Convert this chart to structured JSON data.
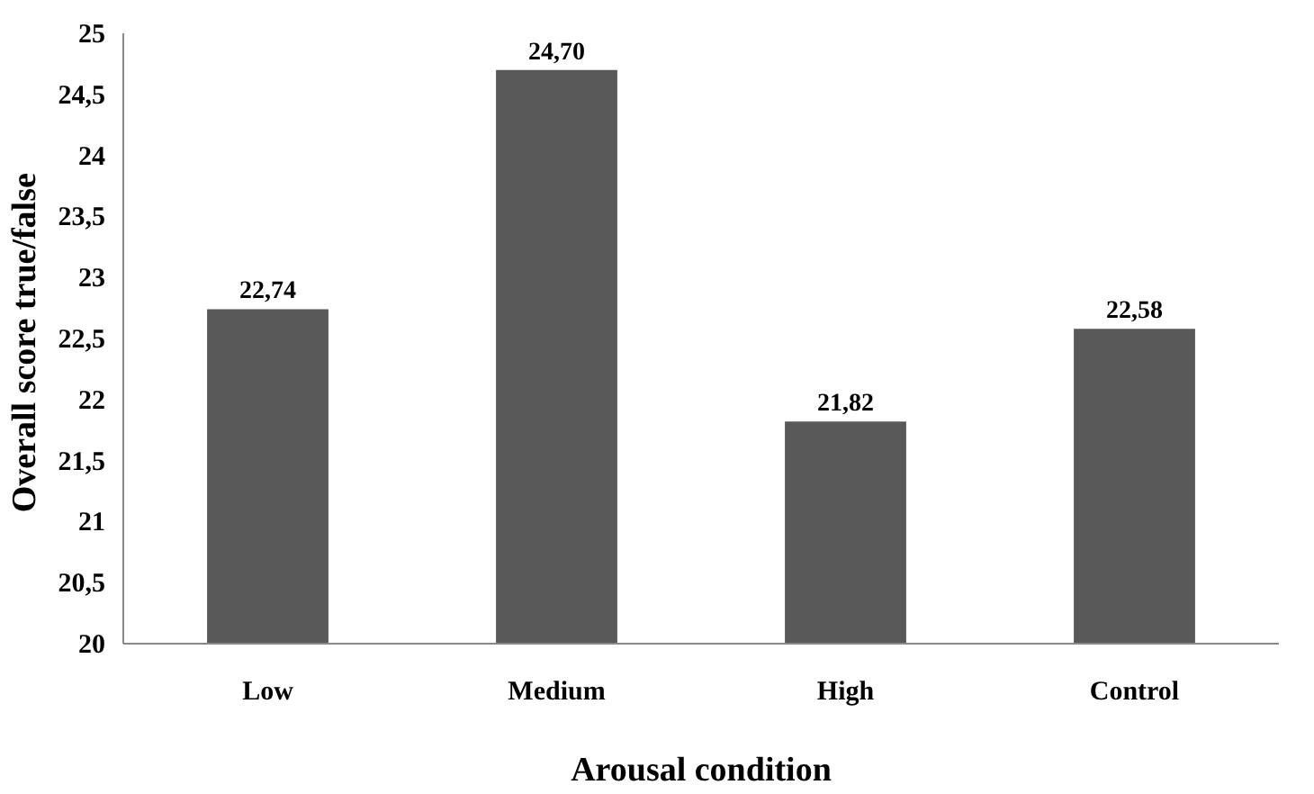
{
  "chart_data": {
    "type": "bar",
    "xlabel": "Arousal condition",
    "ylabel": "Overall score  true/false",
    "categories": [
      "Low",
      "Medium",
      "High",
      "Control"
    ],
    "values": [
      22.74,
      24.7,
      21.82,
      22.58
    ],
    "value_labels": [
      "22,74",
      "24,70",
      "21,82",
      "22,58"
    ],
    "color": "#595959",
    "ylim": [
      20,
      25
    ],
    "yticks": [
      20,
      {
        "value": 20.5,
        "label": "20,5"
      },
      21,
      {
        "value": 21.5,
        "label": "21,5"
      },
      22,
      {
        "value": 22.5,
        "label": "22,5"
      },
      23,
      {
        "value": 23.5,
        "label": "23,5"
      },
      24,
      {
        "value": 24.5,
        "label": "24,5"
      },
      25
    ],
    "grid": false
  }
}
